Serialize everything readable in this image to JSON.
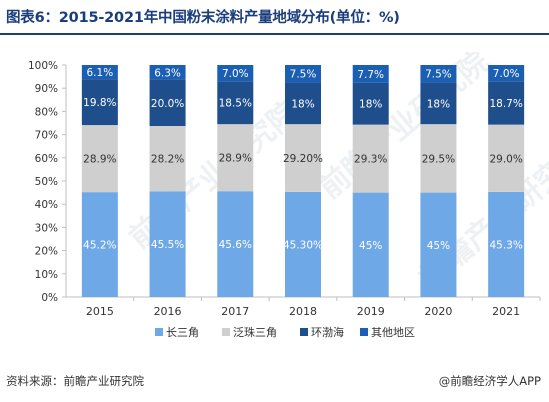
{
  "title": "图表6：2015-2021年中国粉末涂料产量地域分布(单位：%)",
  "footer_source": "资料来源：前瞻产业研究院",
  "footer_credit": "@前瞻经济学人APP",
  "watermark": "前瞻产业研究院",
  "colors": {
    "title": "#1a3d7c",
    "series": [
      "#6fa8e6",
      "#cfcfcf",
      "#1f4e8c",
      "#1a5fb4"
    ]
  },
  "chart_data": {
    "type": "bar",
    "stacked": true,
    "categories": [
      "2015",
      "2016",
      "2017",
      "2018",
      "2019",
      "2020",
      "2021"
    ],
    "series": [
      {
        "name": "长三角",
        "values": [
          45.2,
          45.5,
          45.6,
          45.3,
          45,
          45,
          45.3
        ],
        "labels": [
          "45.2%",
          "45.5%",
          "45.6%",
          "45.30%",
          "45%",
          "45%",
          "45.3%"
        ]
      },
      {
        "name": "泛珠三角",
        "values": [
          28.9,
          28.2,
          28.9,
          29.2,
          29.3,
          29.5,
          29.0
        ],
        "labels": [
          "28.9%",
          "28.2%",
          "28.9%",
          "29.20%",
          "29.3%",
          "29.5%",
          "29.0%"
        ]
      },
      {
        "name": "环渤海",
        "values": [
          19.8,
          20.0,
          18.5,
          18,
          18,
          18,
          18.7
        ],
        "labels": [
          "19.8%",
          "20.0%",
          "18.5%",
          "18%",
          "18%",
          "18%",
          "18.7%"
        ]
      },
      {
        "name": "其他地区",
        "values": [
          6.1,
          6.3,
          7.0,
          7.5,
          7.7,
          7.5,
          7.0
        ],
        "labels": [
          "6.1%",
          "6.3%",
          "7.0%",
          "7.5%",
          "7.7%",
          "7.5%",
          "7.0%"
        ]
      }
    ],
    "ylim": [
      0,
      100
    ],
    "yticks": [
      "0%",
      "10%",
      "20%",
      "30%",
      "40%",
      "50%",
      "60%",
      "70%",
      "80%",
      "90%",
      "100%"
    ],
    "legend_position": "bottom",
    "grid": false
  }
}
